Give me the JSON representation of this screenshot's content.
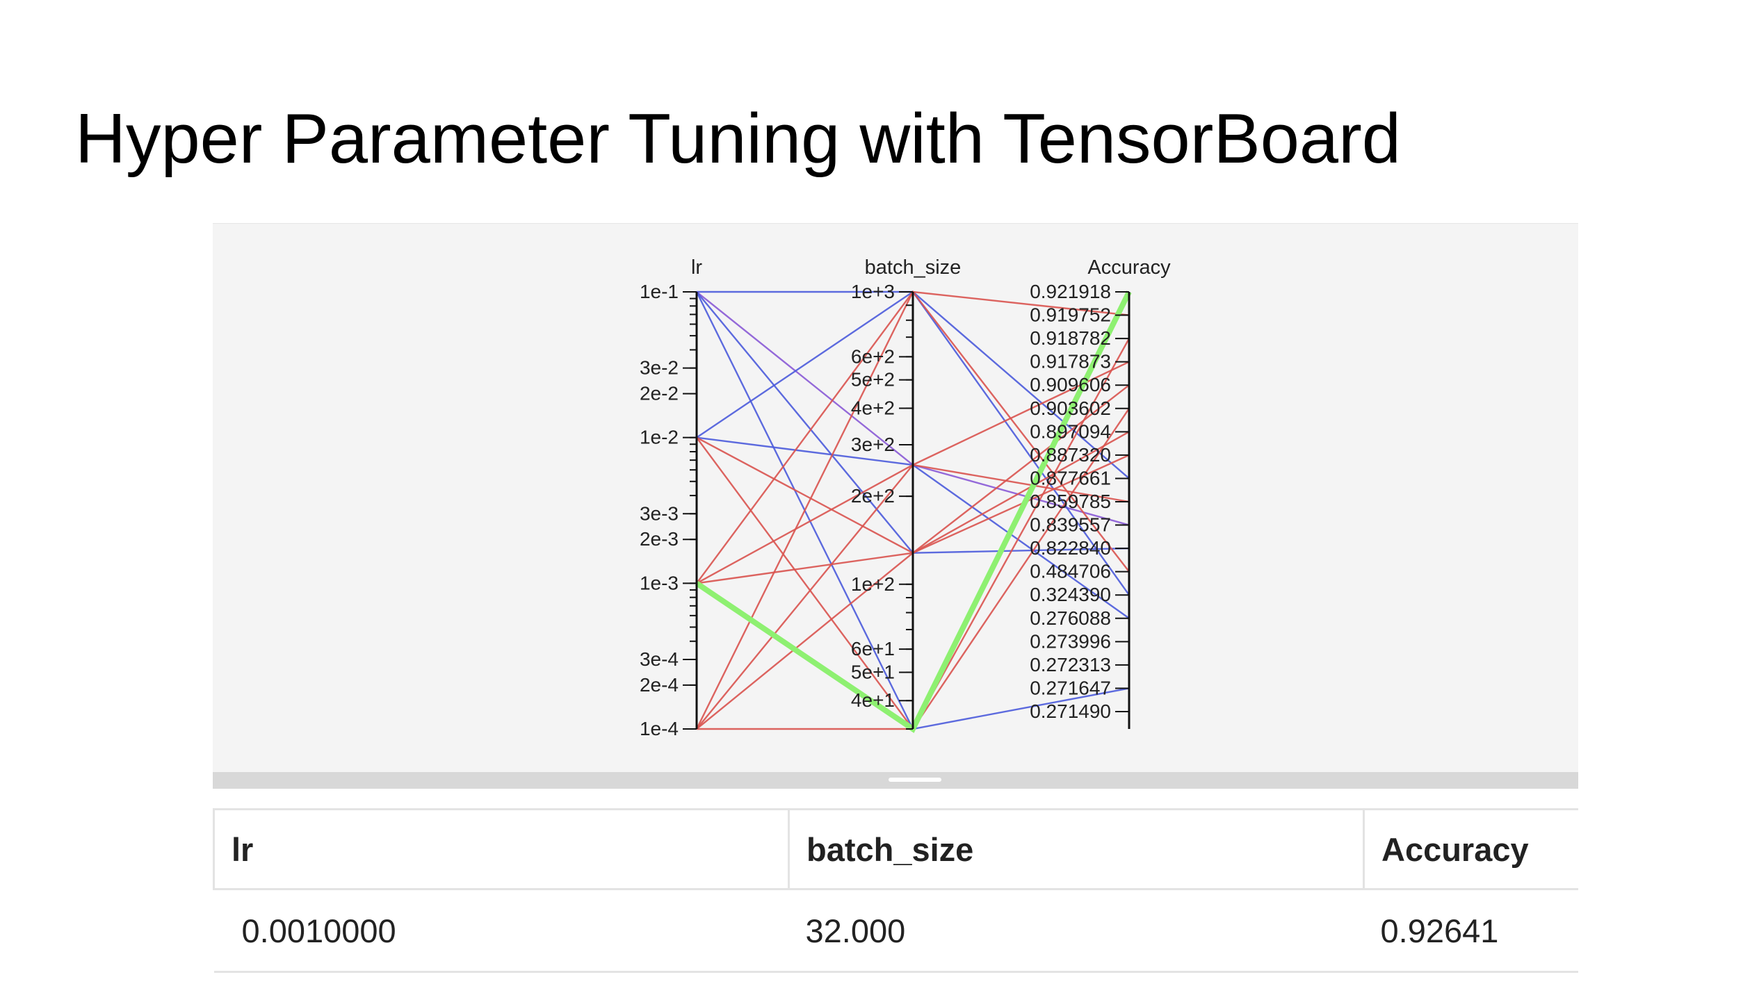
{
  "slide": {
    "title": "Hyper Parameter Tuning with TensorBoard"
  },
  "colors": {
    "panel_bg": "#f4f4f4",
    "line_red": "#d9534f",
    "line_blue": "#4b5bdc",
    "line_purple": "#8a5ad6",
    "line_highlight": "#8ef071"
  },
  "chart_data": {
    "type": "parallel-coordinates",
    "axes": [
      {
        "name": "lr",
        "scale": "log",
        "range": [
          0.0001,
          0.1
        ],
        "tick_labels": [
          "1e-1",
          "3e-2",
          "2e-2",
          "1e-2",
          "3e-3",
          "2e-3",
          "1e-3",
          "3e-4",
          "2e-4",
          "1e-4"
        ],
        "tick_values": [
          0.1,
          0.03,
          0.02,
          0.01,
          0.003,
          0.002,
          0.001,
          0.0003,
          0.0002,
          0.0001
        ]
      },
      {
        "name": "batch_size",
        "scale": "log",
        "range": [
          32,
          1000
        ],
        "tick_labels": [
          "1e+3",
          "6e+2",
          "5e+2",
          "4e+2",
          "3e+2",
          "2e+2",
          "1e+2",
          "6e+1",
          "5e+1",
          "4e+1"
        ],
        "tick_values": [
          1000,
          600,
          500,
          400,
          300,
          200,
          100,
          60,
          50,
          40
        ]
      },
      {
        "name": "Accuracy",
        "scale": "ordinal",
        "tick_labels": [
          "0.921918",
          "0.919752",
          "0.918782",
          "0.917873",
          "0.909606",
          "0.903602",
          "0.897094",
          "0.887320",
          "0.877661",
          "0.859785",
          "0.839557",
          "0.822840",
          "0.484706",
          "0.324390",
          "0.276088",
          "0.273996",
          "0.272313",
          "0.271647",
          "0.271490"
        ]
      }
    ],
    "series": [
      {
        "lr": 0.1,
        "batch_size": 1000,
        "accuracy": 0.877661,
        "color": "blue"
      },
      {
        "lr": 0.1,
        "batch_size": 256,
        "accuracy": 0.839557,
        "color": "purple"
      },
      {
        "lr": 0.1,
        "batch_size": 128,
        "accuracy": 0.82284,
        "color": "blue"
      },
      {
        "lr": 0.1,
        "batch_size": 32,
        "accuracy": 0.271647,
        "color": "blue"
      },
      {
        "lr": 0.01,
        "batch_size": 1000,
        "accuracy": 0.32439,
        "color": "blue"
      },
      {
        "lr": 0.01,
        "batch_size": 256,
        "accuracy": 0.276088,
        "color": "blue"
      },
      {
        "lr": 0.01,
        "batch_size": 128,
        "accuracy": 0.909606,
        "color": "red"
      },
      {
        "lr": 0.01,
        "batch_size": 32,
        "accuracy": 0.903602,
        "color": "red"
      },
      {
        "lr": 0.001,
        "batch_size": 1000,
        "accuracy": 0.919752,
        "color": "red"
      },
      {
        "lr": 0.001,
        "batch_size": 256,
        "accuracy": 0.917873,
        "color": "red"
      },
      {
        "lr": 0.001,
        "batch_size": 128,
        "accuracy": 0.897094,
        "color": "red"
      },
      {
        "lr": 0.001,
        "batch_size": 32,
        "accuracy": 0.92641,
        "color": "highlight"
      },
      {
        "lr": 0.0001,
        "batch_size": 1000,
        "accuracy": 0.484706,
        "color": "red"
      },
      {
        "lr": 0.0001,
        "batch_size": 256,
        "accuracy": 0.859785,
        "color": "red"
      },
      {
        "lr": 0.0001,
        "batch_size": 128,
        "accuracy": 0.88732,
        "color": "red"
      },
      {
        "lr": 0.0001,
        "batch_size": 32,
        "accuracy": 0.918782,
        "color": "red"
      }
    ]
  },
  "table": {
    "headers": {
      "lr": "lr",
      "batch_size": "batch_size",
      "accuracy": "Accuracy"
    },
    "rows": [
      {
        "lr": "0.0010000",
        "batch_size": "32.000",
        "accuracy": "0.92641"
      }
    ]
  }
}
